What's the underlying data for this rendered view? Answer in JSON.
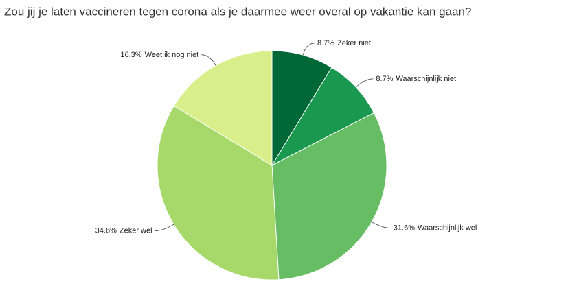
{
  "chart_data": {
    "type": "pie",
    "title": "Zou jij je laten vaccineren tegen corona als je daarmee weer overal op vakantie kan gaan?",
    "categories": [
      "Zeker niet",
      "Waarschijnlijk niet",
      "Waarschijnlijk wel",
      "Zeker wel",
      "Weet ik nog niet"
    ],
    "values": [
      8.7,
      8.7,
      31.6,
      34.6,
      16.3
    ],
    "value_labels": [
      "8.7%",
      "8.7%",
      "31.6%",
      "34.6%",
      "16.3%"
    ],
    "colors": [
      "#006837",
      "#1a9850",
      "#66bd63",
      "#a6d96a",
      "#d9ef8b"
    ]
  }
}
